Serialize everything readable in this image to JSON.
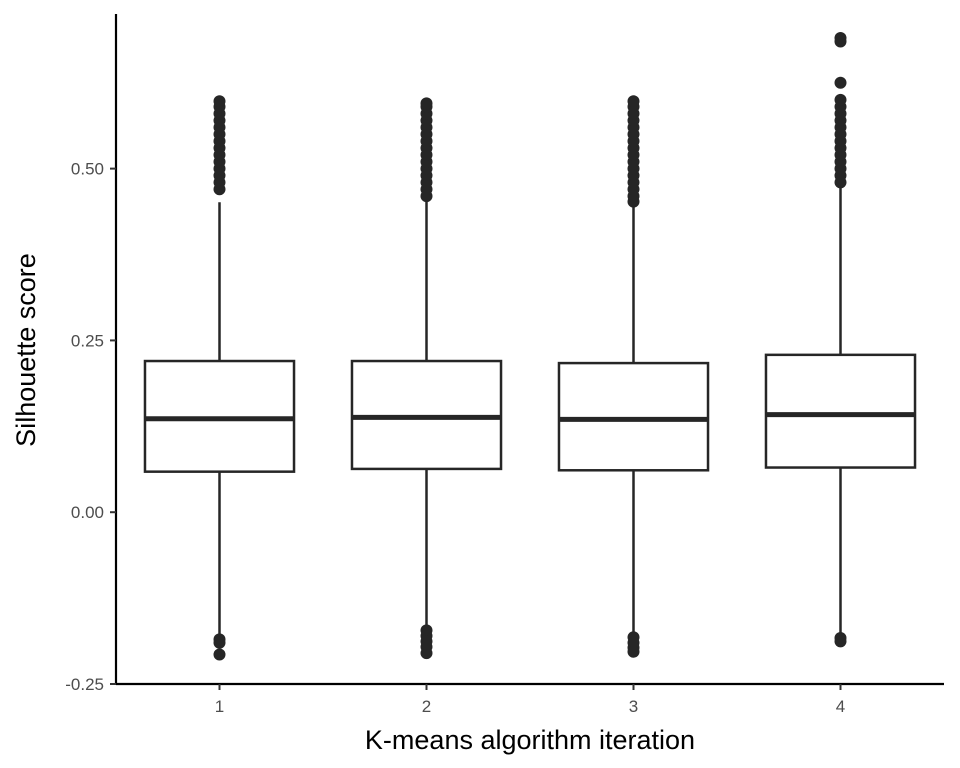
{
  "chart_data": {
    "type": "boxplot",
    "title": "",
    "xlabel": "K-means algorithm iteration",
    "ylabel": "Silhouette score",
    "categories": [
      "1",
      "2",
      "3",
      "4"
    ],
    "ylim": [
      -0.25,
      0.725
    ],
    "yticks": [
      -0.25,
      0.0,
      0.25,
      0.5
    ],
    "ytick_labels": [
      "-0.25",
      "0.00",
      "0.25",
      "0.50"
    ],
    "grid": false,
    "legend": "none",
    "colors": {
      "stroke": "#262626",
      "fill": "#ffffff",
      "tick_text": "#4d4d4d"
    },
    "boxes": [
      {
        "category": "1",
        "q1": 0.059,
        "median": 0.136,
        "q3": 0.22,
        "whisker_low": -0.181,
        "whisker_high": 0.451,
        "outliers_high": [
          0.47,
          0.48,
          0.49,
          0.5,
          0.51,
          0.52,
          0.53,
          0.54,
          0.55,
          0.56,
          0.57,
          0.58,
          0.59,
          0.598
        ],
        "outliers_low": [
          -0.185,
          -0.19,
          -0.207
        ]
      },
      {
        "category": "2",
        "q1": 0.063,
        "median": 0.138,
        "q3": 0.22,
        "whisker_low": -0.17,
        "whisker_high": 0.455,
        "outliers_high": [
          0.46,
          0.47,
          0.48,
          0.49,
          0.5,
          0.51,
          0.52,
          0.53,
          0.54,
          0.55,
          0.56,
          0.57,
          0.58,
          0.59,
          0.595
        ],
        "outliers_low": [
          -0.172,
          -0.18,
          -0.188,
          -0.196,
          -0.205
        ]
      },
      {
        "category": "3",
        "q1": 0.061,
        "median": 0.135,
        "q3": 0.217,
        "whisker_low": -0.18,
        "whisker_high": 0.449,
        "outliers_high": [
          0.452,
          0.46,
          0.47,
          0.48,
          0.49,
          0.5,
          0.51,
          0.52,
          0.53,
          0.54,
          0.55,
          0.56,
          0.57,
          0.58,
          0.59,
          0.598
        ],
        "outliers_low": [
          -0.182,
          -0.19,
          -0.197,
          -0.203
        ]
      },
      {
        "category": "4",
        "q1": 0.065,
        "median": 0.142,
        "q3": 0.229,
        "whisker_low": -0.18,
        "whisker_high": 0.474,
        "outliers_high": [
          0.48,
          0.49,
          0.5,
          0.51,
          0.52,
          0.53,
          0.54,
          0.55,
          0.56,
          0.57,
          0.58,
          0.59,
          0.6,
          0.625,
          0.685,
          0.69
        ],
        "outliers_low": [
          -0.183,
          -0.188
        ]
      }
    ]
  }
}
